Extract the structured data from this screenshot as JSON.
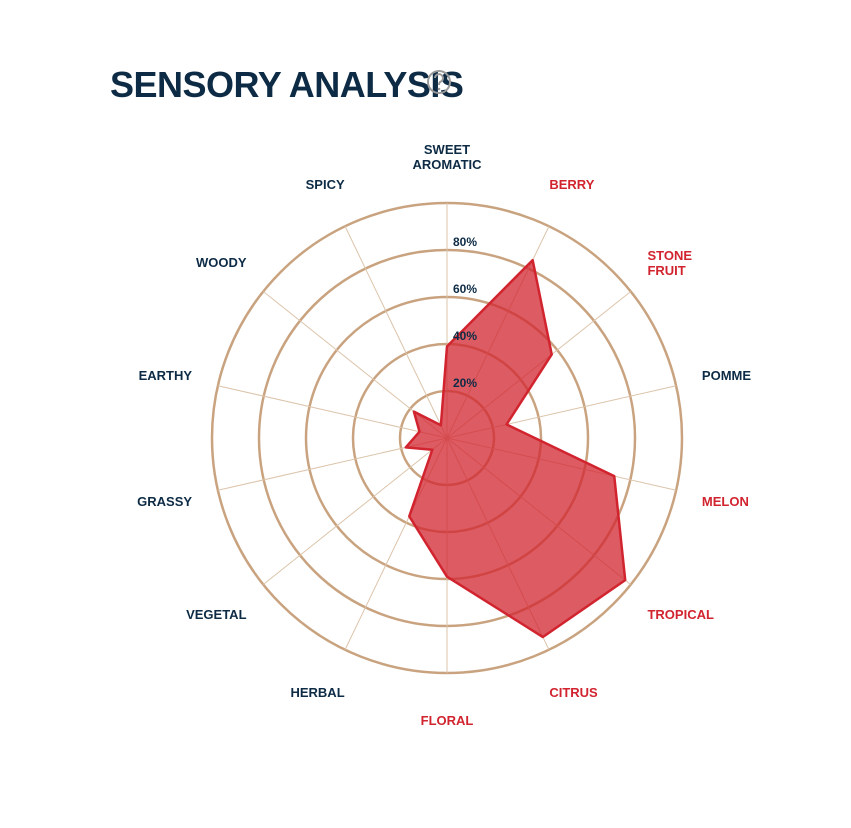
{
  "chart_data": {
    "type": "radar",
    "title": "SENSORY ANALYSIS",
    "categories": [
      "SWEET\nAROMATIC",
      "BERRY",
      "STONE\nFRUIT",
      "POMME",
      "MELON",
      "TROPICAL",
      "CITRUS",
      "FLORAL",
      "HERBAL",
      "VEGETAL",
      "GRASSY",
      "EARTHY",
      "WOODY",
      "SPICY"
    ],
    "values": [
      39,
      84,
      57,
      26,
      73,
      97,
      94,
      59,
      37,
      8,
      18,
      12,
      18,
      6
    ],
    "label_colors": [
      "#0d2b45",
      "#d1242f",
      "#d1242f",
      "#0d2b45",
      "#d1242f",
      "#d1242f",
      "#d1242f",
      "#d1242f",
      "#0d2b45",
      "#0d2b45",
      "#0d2b45",
      "#0d2b45",
      "#0d2b45",
      "#0d2b45"
    ],
    "color": "#d1242f",
    "rlim": [
      0,
      100
    ],
    "rticks": [
      {
        "value": 20,
        "label": "20%"
      },
      {
        "value": 40,
        "label": "40%"
      },
      {
        "value": 60,
        "label": "60%"
      },
      {
        "value": 80,
        "label": "80%"
      },
      100
    ]
  }
}
